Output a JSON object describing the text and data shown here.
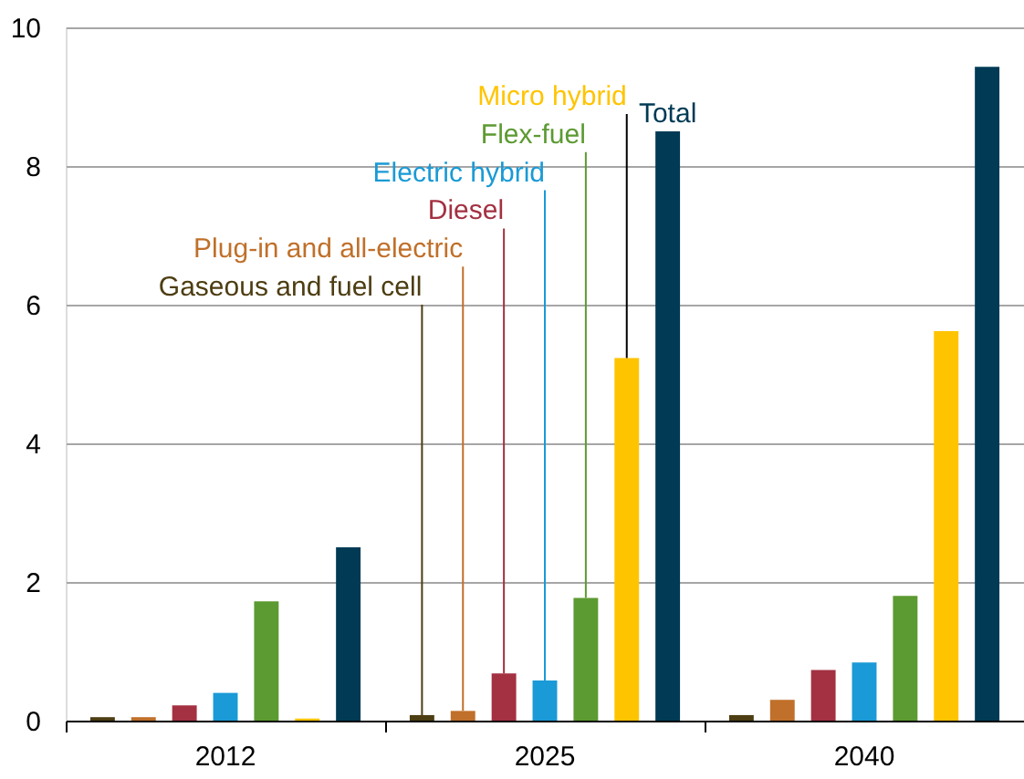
{
  "chart_data": {
    "type": "bar",
    "categories": [
      "2012",
      "2025",
      "2040"
    ],
    "series": [
      {
        "name": "Gaseous and fuel cell",
        "color": "#4d3d12",
        "values": [
          0.05,
          0.08,
          0.08
        ]
      },
      {
        "name": "Plug-in and all-electric",
        "color": "#c0702a",
        "values": [
          0.05,
          0.14,
          0.3
        ]
      },
      {
        "name": "Diesel",
        "color": "#a33141",
        "values": [
          0.22,
          0.68,
          0.73
        ]
      },
      {
        "name": "Electric hybrid",
        "color": "#1a9ad6",
        "values": [
          0.4,
          0.58,
          0.84
        ]
      },
      {
        "name": "Flex-fuel",
        "color": "#5c9a32",
        "values": [
          1.72,
          1.77,
          1.8
        ]
      },
      {
        "name": "Micro hybrid",
        "color": "#ffc400",
        "values": [
          0.03,
          5.23,
          5.62
        ]
      },
      {
        "name": "Total",
        "color": "#003a55",
        "values": [
          2.5,
          8.5,
          9.43
        ]
      }
    ],
    "ylim": [
      0,
      10
    ],
    "yticks": [
      0,
      2,
      4,
      6,
      8,
      10
    ],
    "grid": "y",
    "legend": false
  }
}
